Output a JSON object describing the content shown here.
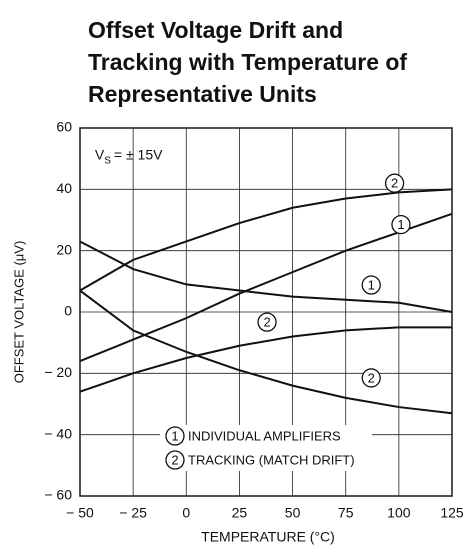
{
  "chart_data": {
    "type": "line",
    "title": [
      "Offset Voltage Drift and",
      "Tracking with Temperature of",
      "Representative Units"
    ],
    "x_label": "TEMPERATURE (°C)",
    "y_label": "OFFSET VOLTAGE (μV)",
    "x": [
      -50,
      -25,
      0,
      25,
      50,
      75,
      100,
      125
    ],
    "series": [
      {
        "color": "#111111",
        "values": [
          7,
          17,
          23,
          29,
          34,
          37,
          39,
          40
        ]
      },
      {
        "color": "#111111",
        "values": [
          -16,
          -9,
          -2,
          6,
          13,
          20,
          26,
          32
        ]
      },
      {
        "color": "#111111",
        "values": [
          23,
          14,
          9,
          7,
          5,
          4,
          3,
          0
        ]
      },
      {
        "color": "#111111",
        "values": [
          7,
          -6,
          -13,
          -19,
          -24,
          -28,
          -31,
          -33
        ]
      },
      {
        "color": "#111111",
        "values": [
          -26,
          -20,
          -15,
          -11,
          -8,
          -6,
          -5,
          -5
        ]
      }
    ],
    "xlim": [
      -50,
      125
    ],
    "xticks": [
      {
        "value": -50,
        "label": "− 50"
      },
      {
        "value": -25,
        "label": "− 25"
      },
      0,
      25,
      50,
      75,
      100,
      125
    ],
    "ylim": [
      -60,
      60
    ],
    "yticks": [
      {
        "value": -60,
        "label": "− 60"
      },
      {
        "value": -40,
        "label": "− 40"
      },
      {
        "value": -20,
        "label": "− 20"
      },
      0,
      20,
      40,
      60
    ],
    "grid": true,
    "supply_note": {
      "text": "V",
      "sub": "S",
      "rest": "= ± 15V",
      "x": -43,
      "y": 51
    },
    "curve_labels": [
      {
        "text": "2",
        "x": 98,
        "y": 42
      },
      {
        "text": "1",
        "x": 101,
        "y": 28.5
      },
      {
        "text": "1",
        "x": 87,
        "y": 8.8
      },
      {
        "text": "2",
        "x": 38,
        "y": -3.3
      },
      {
        "text": "2",
        "x": 87,
        "y": -21.5
      }
    ],
    "legend": [
      {
        "symbol": "1",
        "text": "INDIVIDUAL AMPLIFIERS"
      },
      {
        "symbol": "2",
        "text": "TRACKING (MATCH DRIFT)"
      }
    ]
  }
}
